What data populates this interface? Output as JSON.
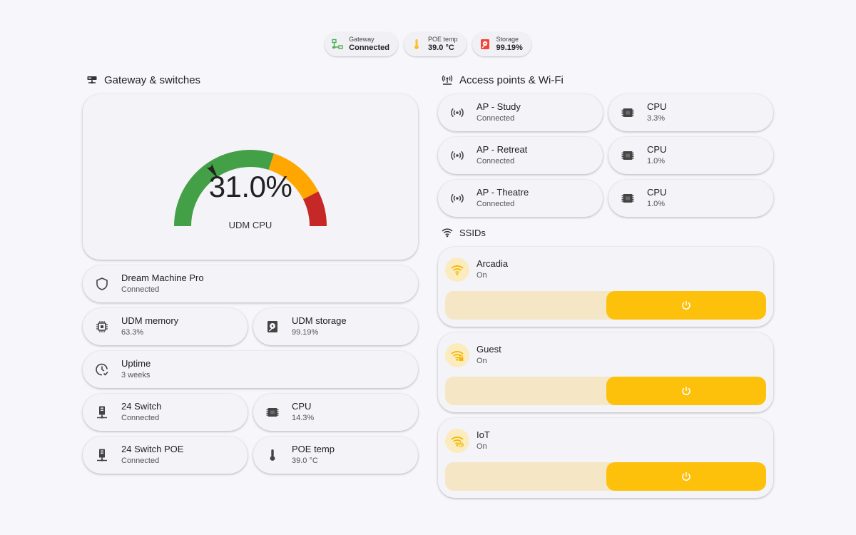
{
  "status_chips": [
    {
      "label": "Gateway",
      "value": "Connected",
      "icon": "gateway-icon",
      "color": "#4caf50"
    },
    {
      "label": "POE temp",
      "value": "39.0 °C",
      "icon": "thermometer-icon",
      "color": "#fbc02d"
    },
    {
      "label": "Storage",
      "value": "99.19%",
      "icon": "harddisk-icon",
      "color": "#f44336"
    }
  ],
  "gateway_section": {
    "title": "Gateway & switches",
    "icon": "server-network-icon",
    "gauge": {
      "value_text": "31.0%",
      "value": 31.0,
      "min": 0,
      "max": 100,
      "name": "UDM CPU",
      "severity_colors": {
        "green": "#43a047",
        "yellow": "#ffa600",
        "red": "#c62828"
      }
    },
    "device": {
      "name": "Dream Machine Pro",
      "state": "Connected",
      "icon": "shield-outline-icon"
    },
    "memory": {
      "name": "UDM memory",
      "state": "63.3%",
      "icon": "memory-chip-icon"
    },
    "storage": {
      "name": "UDM storage",
      "state": "99.19%",
      "icon": "harddisk-icon"
    },
    "uptime": {
      "name": "Uptime",
      "state": "3 weeks",
      "icon": "clock-check-icon"
    },
    "switch24": {
      "name": "24 Switch",
      "state": "Connected",
      "icon": "switch-icon"
    },
    "switch24_cpu": {
      "name": "CPU",
      "state": "14.3%",
      "icon": "cpu-icon"
    },
    "switch24poe": {
      "name": "24 Switch POE",
      "state": "Connected",
      "icon": "switch-icon"
    },
    "poe_temp": {
      "name": "POE temp",
      "state": "39.0 °C",
      "icon": "thermometer-icon"
    }
  },
  "ap_section": {
    "title": "Access points & Wi-Fi",
    "icon": "access-point-network-icon",
    "aps": [
      {
        "name": "AP - Study",
        "state": "Connected",
        "cpu_label": "CPU",
        "cpu": "3.3%"
      },
      {
        "name": "AP - Retreat",
        "state": "Connected",
        "cpu_label": "CPU",
        "cpu": "1.0%"
      },
      {
        "name": "AP - Theatre",
        "state": "Connected",
        "cpu_label": "CPU",
        "cpu": "1.0%"
      }
    ]
  },
  "ssid_section": {
    "title": "SSIDs",
    "icon": "wifi-icon",
    "accent": "#fdc00b",
    "ssids": [
      {
        "name": "Arcadia",
        "state": "On",
        "icon": "wifi-icon"
      },
      {
        "name": "Guest",
        "state": "On",
        "icon": "wifi-lock-icon"
      },
      {
        "name": "IoT",
        "state": "On",
        "icon": "wifi-cog-icon"
      }
    ]
  }
}
